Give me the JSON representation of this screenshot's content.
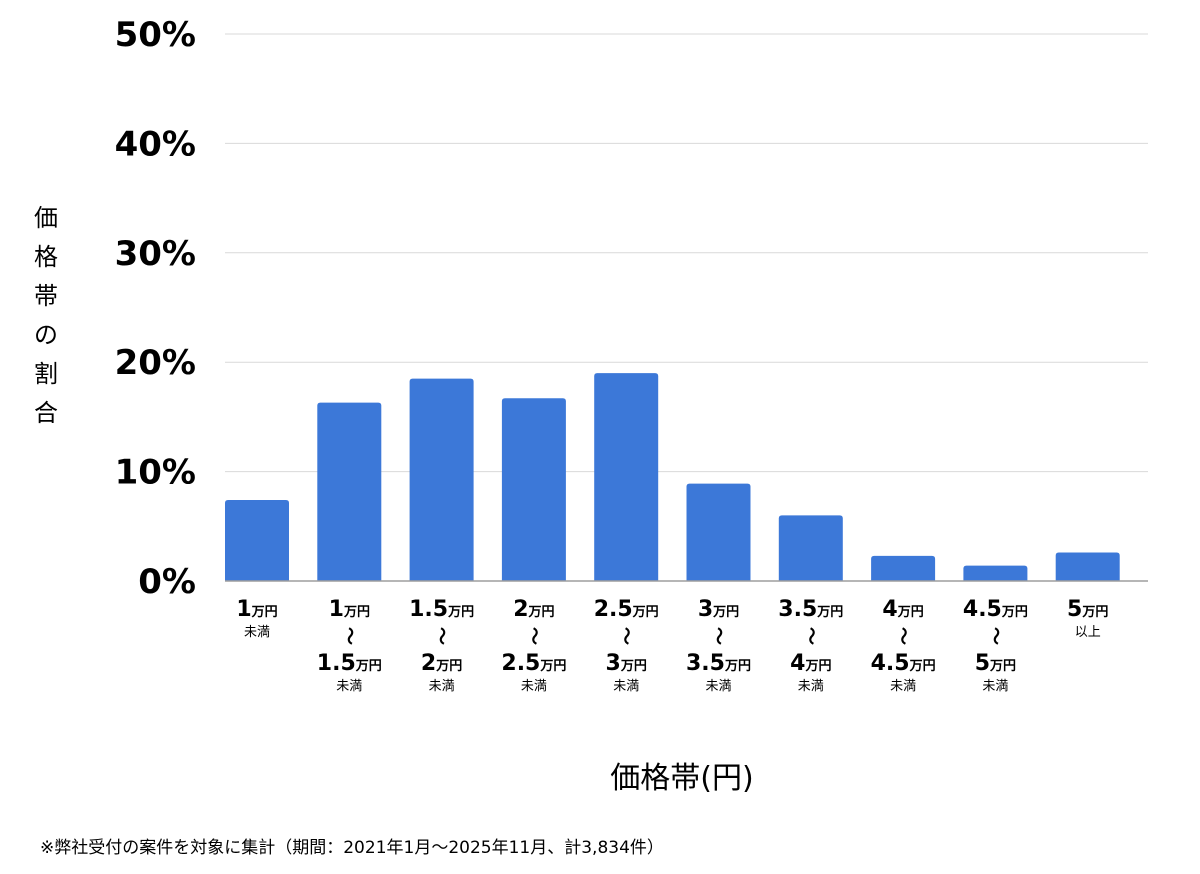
{
  "chart_data": {
    "type": "bar",
    "ylabel": "価格帯の割合",
    "xlabel": "価格帯(円)",
    "ylim": [
      0,
      50
    ],
    "yticks": [
      "0%",
      "10%",
      "20%",
      "30%",
      "40%",
      "50%"
    ],
    "grid": true,
    "bar_color": "#3c78d8",
    "categories": [
      {
        "lines": [
          {
            "num": "1",
            "unit": "万円"
          }
        ],
        "suffix": "未満"
      },
      {
        "lines": [
          {
            "num": "1",
            "unit": "万円"
          },
          {
            "num": "1.5",
            "unit": "万円"
          }
        ],
        "suffix": "未満"
      },
      {
        "lines": [
          {
            "num": "1.5",
            "unit": "万円"
          },
          {
            "num": "2",
            "unit": "万円"
          }
        ],
        "suffix": "未満"
      },
      {
        "lines": [
          {
            "num": "2",
            "unit": "万円"
          },
          {
            "num": "2.5",
            "unit": "万円"
          }
        ],
        "suffix": "未満"
      },
      {
        "lines": [
          {
            "num": "2.5",
            "unit": "万円"
          },
          {
            "num": "3",
            "unit": "万円"
          }
        ],
        "suffix": "未満"
      },
      {
        "lines": [
          {
            "num": "3",
            "unit": "万円"
          },
          {
            "num": "3.5",
            "unit": "万円"
          }
        ],
        "suffix": "未満"
      },
      {
        "lines": [
          {
            "num": "3.5",
            "unit": "万円"
          },
          {
            "num": "4",
            "unit": "万円"
          }
        ],
        "suffix": "未満"
      },
      {
        "lines": [
          {
            "num": "4",
            "unit": "万円"
          },
          {
            "num": "4.5",
            "unit": "万円"
          }
        ],
        "suffix": "未満"
      },
      {
        "lines": [
          {
            "num": "4.5",
            "unit": "万円"
          },
          {
            "num": "5",
            "unit": "万円"
          }
        ],
        "suffix": "未満"
      },
      {
        "lines": [
          {
            "num": "5",
            "unit": "万円"
          }
        ],
        "suffix": "以上"
      }
    ],
    "range_mark": "～",
    "values": [
      7.4,
      16.3,
      18.5,
      16.7,
      19.0,
      8.9,
      6.0,
      2.3,
      1.4,
      2.6
    ]
  },
  "footnote": "※弊社受付の案件を対象に集計（期間：2021年1月～2025年11月、計3,834件）"
}
